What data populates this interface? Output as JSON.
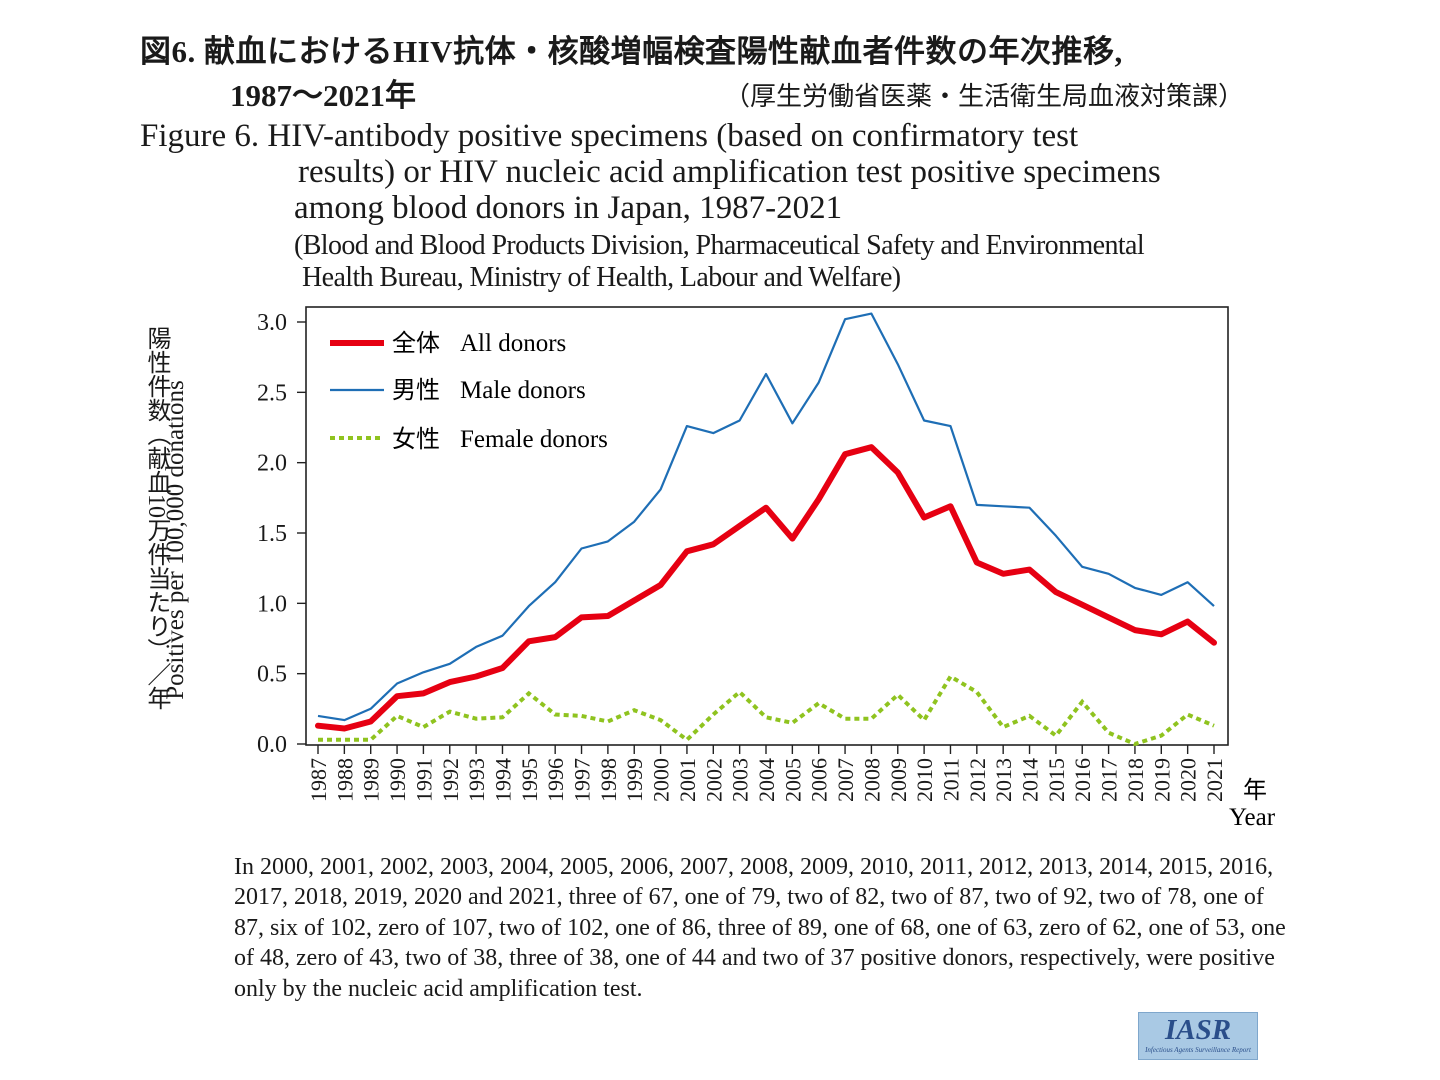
{
  "title_jp_line1": "図6. 献血におけるHIV抗体・核酸増幅検査陽性献血者件数の年次推移,",
  "title_jp_line2": "1987〜2021年",
  "source_jp": "（厚生労働省医薬・生活衛生局血液対策課）",
  "title_en_line1": "Figure 6. HIV-antibody positive specimens (based on confirmatory test",
  "title_en_line2": "results) or HIV nucleic acid amplification test positive specimens",
  "title_en_line3": "among blood donors in Japan, 1987-2021",
  "source_en_line1": "(Blood and Blood Products Division, Pharmaceutical Safety and Environmental",
  "source_en_line2": "Health Bureau, Ministry of Health, Labour and Welfare)",
  "footnote": "In 2000, 2001, 2002, 2003, 2004, 2005, 2006, 2007, 2008, 2009, 2010, 2011, 2012, 2013, 2014, 2015, 2016, 2017, 2018, 2019, 2020 and 2021, three of 67, one of 79, two of 82, two of 87, two of 92, two of 78, one of 87, six of 102, zero of 107, two of 102, one of 86, three of 89, one of 68, one of 63, zero of 62, one of 53, one of 48, zero of 43, two of 38, three of 38, one of 44 and two of 37 positive donors, respectively, were positive only by the nucleic acid amplification test.",
  "logo": {
    "text": "IASR",
    "subtext": "Infectious Agents Surveillance Report"
  },
  "colors": {
    "all": "#e60012",
    "male": "#1e6eb5",
    "female": "#8fc31f"
  },
  "chart_data": {
    "type": "line",
    "ylabel_jp": "陽性件数（献血10万件当たり）／年",
    "ylabel_en": "Positives per 100,000 donations",
    "xlabel_jp": "年",
    "xlabel_en": "Year",
    "ylim": [
      0,
      3.0
    ],
    "yticks": [
      "0.0",
      "0.5",
      "1.0",
      "1.5",
      "2.0",
      "2.5",
      "3.0"
    ],
    "x": [
      "1987",
      "1988",
      "1989",
      "1990",
      "1991",
      "1992",
      "1993",
      "1994",
      "1995",
      "1996",
      "1997",
      "1998",
      "1999",
      "2000",
      "2001",
      "2002",
      "2003",
      "2004",
      "2005",
      "2006",
      "2007",
      "2008",
      "2009",
      "2010",
      "2011",
      "2012",
      "2013",
      "2014",
      "2015",
      "2016",
      "2017",
      "2018",
      "2019",
      "2020",
      "2021"
    ],
    "series": [
      {
        "name": "全体 All donors",
        "label_jp": "全体",
        "label_en": "All donors",
        "style": "thick",
        "values": [
          0.13,
          0.11,
          0.16,
          0.34,
          0.36,
          0.44,
          0.48,
          0.54,
          0.73,
          0.76,
          0.9,
          0.91,
          1.02,
          1.13,
          1.37,
          1.42,
          1.55,
          1.68,
          1.46,
          1.74,
          2.06,
          2.11,
          1.93,
          1.61,
          1.69,
          1.29,
          1.21,
          1.24,
          1.08,
          0.99,
          0.9,
          0.81,
          0.78,
          0.87,
          0.72
        ]
      },
      {
        "name": "男性 Male donors",
        "label_jp": "男性",
        "label_en": "Male donors",
        "style": "thin",
        "values": [
          0.2,
          0.17,
          0.25,
          0.43,
          0.51,
          0.57,
          0.69,
          0.77,
          0.98,
          1.15,
          1.39,
          1.44,
          1.58,
          1.81,
          2.26,
          2.21,
          2.3,
          2.63,
          2.28,
          2.57,
          3.02,
          3.06,
          2.7,
          2.3,
          2.26,
          1.7,
          1.69,
          1.68,
          1.48,
          1.26,
          1.21,
          1.11,
          1.06,
          1.15,
          0.98
        ]
      },
      {
        "name": "女性 Female donors",
        "label_jp": "女性",
        "label_en": "Female donors",
        "style": "dotted",
        "values": [
          0.03,
          0.03,
          0.03,
          0.2,
          0.12,
          0.23,
          0.18,
          0.19,
          0.36,
          0.21,
          0.2,
          0.16,
          0.24,
          0.17,
          0.03,
          0.21,
          0.37,
          0.19,
          0.15,
          0.29,
          0.18,
          0.18,
          0.35,
          0.17,
          0.48,
          0.37,
          0.12,
          0.2,
          0.06,
          0.3,
          0.08,
          0.0,
          0.06,
          0.21,
          0.13
        ]
      }
    ]
  }
}
